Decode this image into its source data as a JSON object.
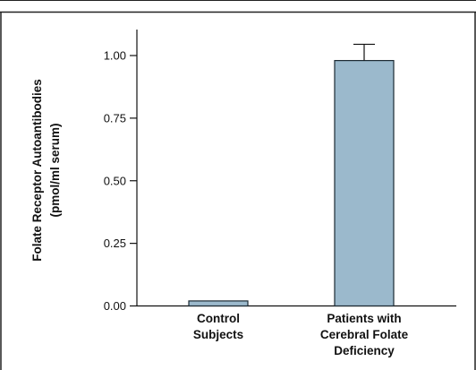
{
  "chart_data": {
    "type": "bar",
    "categories": [
      [
        "Control",
        "Subjects"
      ],
      [
        "Patients with",
        "Cerebral Folate",
        "Deficiency"
      ]
    ],
    "values": [
      0.02,
      0.98
    ],
    "error_upper": [
      null,
      0.065
    ],
    "ylabel_lines": [
      "Folate Receptor Autoantibodies",
      "(pmol/ml serum)"
    ],
    "yticks": [
      "0.00",
      "0.25",
      "0.50",
      "0.75",
      "1.00"
    ],
    "ytick_values": [
      0,
      0.25,
      0.5,
      0.75,
      1.0
    ],
    "ylim": [
      0,
      1.1
    ],
    "grid": false,
    "colors": {
      "bar_fill": "#9bb9cc",
      "bar_stroke": "#1c2a33",
      "axis": "#111111",
      "frame": "#222222"
    }
  }
}
